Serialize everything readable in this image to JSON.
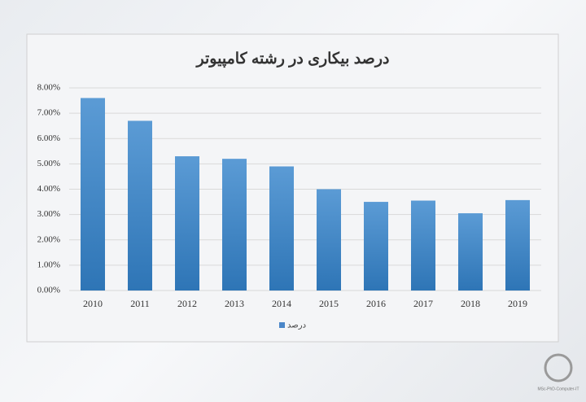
{
  "chart_data": {
    "type": "bar",
    "title": "درصد بیکاری در رشته کامپیوتر",
    "categories": [
      "2010",
      "2011",
      "2012",
      "2013",
      "2014",
      "2015",
      "2016",
      "2017",
      "2018",
      "2019"
    ],
    "series": [
      {
        "name": "درصد",
        "color": "#4a86c8",
        "values": [
          7.6,
          6.7,
          5.3,
          5.2,
          4.9,
          4.0,
          3.5,
          3.55,
          3.05,
          3.57
        ]
      }
    ],
    "ylim": [
      0,
      8
    ],
    "yticks": [
      {
        "value": 0,
        "label": "0.00%"
      },
      {
        "value": 1,
        "label": "1.00%"
      },
      {
        "value": 2,
        "label": "2.00%"
      },
      {
        "value": 3,
        "label": "3.00%"
      },
      {
        "value": 4,
        "label": "4.00%"
      },
      {
        "value": 5,
        "label": "5.00%"
      },
      {
        "value": 6,
        "label": "6.00%"
      },
      {
        "value": 7,
        "label": "7.00%"
      },
      {
        "value": 8,
        "label": "8.00%"
      }
    ],
    "grid": true,
    "legend": "bottom"
  },
  "watermark": "MSc-PhD-Computer-IT"
}
